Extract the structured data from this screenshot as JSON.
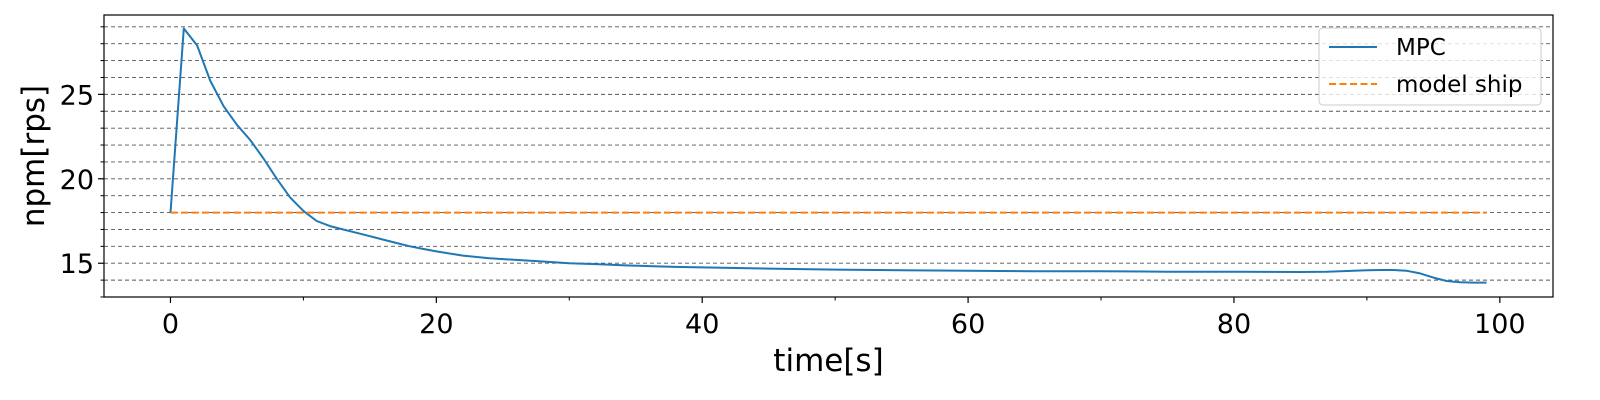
{
  "chart_data": {
    "type": "line",
    "xlabel": "time[s]",
    "ylabel": "npm[rps]",
    "xlim": [
      -5,
      104
    ],
    "ylim": [
      13,
      29.7
    ],
    "x_ticks": [
      0,
      20,
      40,
      60,
      80,
      100
    ],
    "x_tick_labels": [
      "0",
      "20",
      "40",
      "60",
      "80",
      "100"
    ],
    "y_ticks": [
      15,
      20,
      25
    ],
    "y_tick_labels": [
      "15",
      "20",
      "25"
    ],
    "grid": "horizontal dashed, major and minor (every 1 rps)",
    "legend_position": "top-right",
    "series": [
      {
        "name": "MPC",
        "color": "#1f77b4",
        "style": "solid",
        "x": [
          0,
          1,
          2,
          3,
          4,
          5,
          6,
          7,
          8,
          9,
          10,
          11,
          12,
          13,
          14,
          15,
          16,
          17,
          18,
          19,
          20,
          22,
          24,
          26,
          28,
          30,
          32,
          34,
          36,
          38,
          40,
          45,
          50,
          55,
          60,
          65,
          70,
          75,
          80,
          85,
          87,
          89,
          90,
          91,
          92,
          93,
          94,
          95,
          96,
          97,
          98,
          99
        ],
        "values": [
          18.0,
          28.9,
          27.9,
          25.8,
          24.3,
          23.2,
          22.3,
          21.2,
          20.0,
          18.9,
          18.1,
          17.5,
          17.2,
          17.0,
          16.8,
          16.6,
          16.4,
          16.2,
          16.0,
          15.85,
          15.7,
          15.45,
          15.3,
          15.2,
          15.1,
          15.0,
          14.95,
          14.88,
          14.83,
          14.78,
          14.75,
          14.68,
          14.62,
          14.58,
          14.55,
          14.53,
          14.52,
          14.5,
          14.5,
          14.48,
          14.5,
          14.55,
          14.58,
          14.6,
          14.6,
          14.55,
          14.4,
          14.15,
          13.95,
          13.87,
          13.85,
          13.85
        ]
      },
      {
        "name": "model ship",
        "color": "#ff7f0e",
        "style": "dashed",
        "x": [
          0,
          99
        ],
        "values": [
          18.0,
          18.0
        ]
      }
    ]
  }
}
